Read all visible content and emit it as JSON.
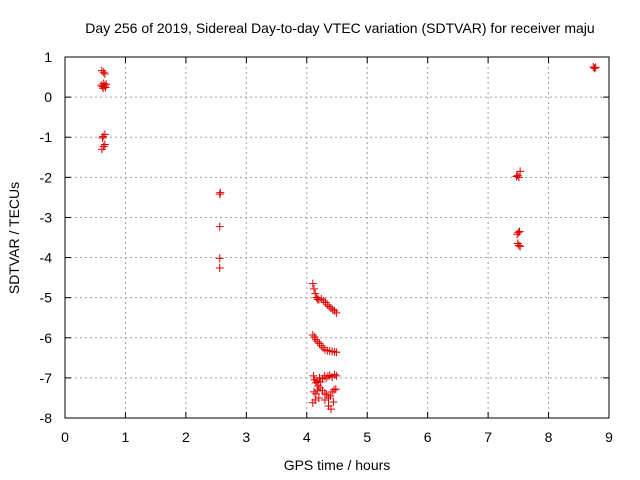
{
  "chart_data": {
    "type": "scatter",
    "title": "Day 256 of 2019, Sidereal Day-to-day VTEC variation (SDTVAR) for receiver maju",
    "xlabel": "GPS time / hours",
    "ylabel": "SDTVAR / TECUs",
    "xlim": [
      0,
      9
    ],
    "ylim": [
      -8,
      1
    ],
    "xticks": [
      "0",
      "1",
      "2",
      "3",
      "4",
      "5",
      "6",
      "7",
      "8",
      "9"
    ],
    "yticks": [
      "-8",
      "-7",
      "-6",
      "-5",
      "-4",
      "-3",
      "-2",
      "-1",
      "0",
      "1"
    ],
    "grid": true,
    "marker": "+",
    "marker_color": "#e00000",
    "series": [
      {
        "name": "SDTVAR",
        "points": [
          [
            0.61,
            0.66
          ],
          [
            0.64,
            0.62
          ],
          [
            0.66,
            0.58
          ],
          [
            0.6,
            0.3
          ],
          [
            0.62,
            0.26
          ],
          [
            0.64,
            0.34
          ],
          [
            0.66,
            0.28
          ],
          [
            0.68,
            0.32
          ],
          [
            0.63,
            0.22
          ],
          [
            0.67,
            0.24
          ],
          [
            0.63,
            -0.98
          ],
          [
            0.66,
            -0.93
          ],
          [
            0.62,
            -1.02
          ],
          [
            0.61,
            -1.3
          ],
          [
            0.64,
            -1.23
          ],
          [
            0.66,
            -1.18
          ],
          [
            2.57,
            -2.38
          ],
          [
            2.56,
            -2.42
          ],
          [
            2.56,
            -3.23
          ],
          [
            2.56,
            -4.02
          ],
          [
            2.56,
            -4.26
          ],
          [
            4.1,
            -4.65
          ],
          [
            4.12,
            -4.78
          ],
          [
            4.14,
            -4.9
          ],
          [
            4.16,
            -5.0
          ],
          [
            4.18,
            -5.04
          ],
          [
            4.2,
            -5.05
          ],
          [
            4.24,
            -5.03
          ],
          [
            4.28,
            -5.08
          ],
          [
            4.31,
            -5.12
          ],
          [
            4.34,
            -5.18
          ],
          [
            4.37,
            -5.22
          ],
          [
            4.4,
            -5.26
          ],
          [
            4.43,
            -5.3
          ],
          [
            4.46,
            -5.33
          ],
          [
            4.49,
            -5.38
          ],
          [
            4.1,
            -5.93
          ],
          [
            4.13,
            -5.98
          ],
          [
            4.15,
            -6.05
          ],
          [
            4.18,
            -6.1
          ],
          [
            4.21,
            -6.14
          ],
          [
            4.24,
            -6.2
          ],
          [
            4.27,
            -6.25
          ],
          [
            4.3,
            -6.3
          ],
          [
            4.34,
            -6.32
          ],
          [
            4.38,
            -6.33
          ],
          [
            4.42,
            -6.34
          ],
          [
            4.46,
            -6.35
          ],
          [
            4.49,
            -6.36
          ],
          [
            4.11,
            -6.95
          ],
          [
            4.13,
            -7.05
          ],
          [
            4.15,
            -7.12
          ],
          [
            4.17,
            -7.08
          ],
          [
            4.19,
            -7.2
          ],
          [
            4.21,
            -7.0
          ],
          [
            4.23,
            -7.1
          ],
          [
            4.26,
            -7.02
          ],
          [
            4.29,
            -6.95
          ],
          [
            4.32,
            -7.0
          ],
          [
            4.35,
            -6.96
          ],
          [
            4.38,
            -6.94
          ],
          [
            4.42,
            -6.98
          ],
          [
            4.46,
            -6.92
          ],
          [
            4.49,
            -6.95
          ],
          [
            4.12,
            -7.35
          ],
          [
            4.15,
            -7.4
          ],
          [
            4.18,
            -7.3
          ],
          [
            4.22,
            -7.25
          ],
          [
            4.26,
            -7.32
          ],
          [
            4.3,
            -7.38
          ],
          [
            4.33,
            -7.42
          ],
          [
            4.36,
            -7.5
          ],
          [
            4.39,
            -7.45
          ],
          [
            4.42,
            -7.35
          ],
          [
            4.45,
            -7.3
          ],
          [
            4.48,
            -7.28
          ],
          [
            4.1,
            -7.62
          ],
          [
            4.14,
            -7.55
          ],
          [
            4.2,
            -7.5
          ],
          [
            4.3,
            -7.55
          ],
          [
            4.36,
            -7.7
          ],
          [
            4.4,
            -7.78
          ],
          [
            4.44,
            -7.6
          ],
          [
            7.53,
            -1.85
          ],
          [
            7.49,
            -1.95
          ],
          [
            7.51,
            -2.0
          ],
          [
            7.47,
            -1.98
          ],
          [
            7.52,
            -3.35
          ],
          [
            7.5,
            -3.38
          ],
          [
            7.48,
            -3.42
          ],
          [
            7.49,
            -3.65
          ],
          [
            7.51,
            -3.7
          ],
          [
            7.53,
            -3.72
          ],
          [
            8.74,
            0.75
          ],
          [
            8.76,
            0.72
          ],
          [
            8.78,
            0.74
          ]
        ]
      }
    ]
  }
}
